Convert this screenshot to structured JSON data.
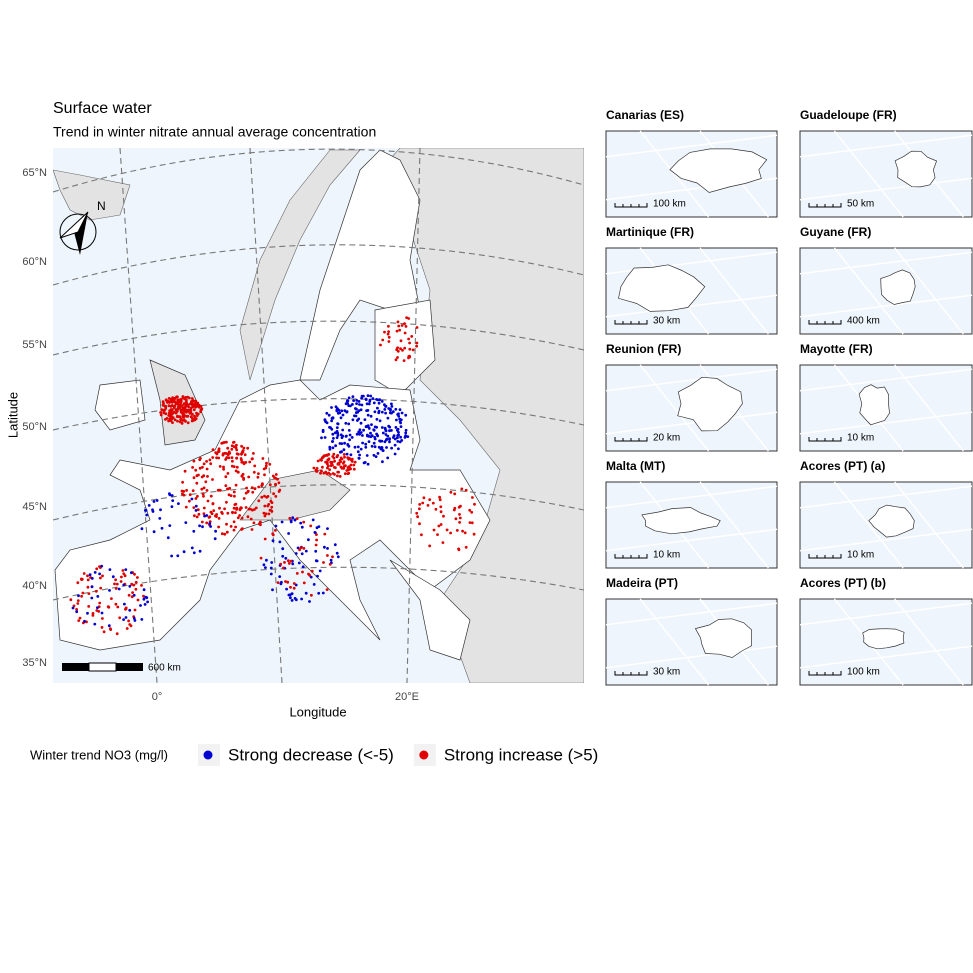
{
  "map": {
    "title": "Surface water",
    "subtitle": "Trend in winter nitrate annual average concentration",
    "y_axis_label": "Latitude",
    "x_axis_label": "Longitude",
    "y_ticks": [
      "65°N",
      "60°N",
      "55°N",
      "50°N",
      "45°N",
      "40°N",
      "35°N"
    ],
    "x_ticks": [
      "0°",
      "20°E"
    ],
    "scale_bar": "600 km",
    "north": "N"
  },
  "legend": {
    "title": "Winter trend NO3 (mg/l)",
    "items": [
      {
        "label": "Strong decrease (<-5)",
        "color": "#0000d0"
      },
      {
        "label": "Strong increase (>5)",
        "color": "#e00000"
      }
    ]
  },
  "insets": [
    {
      "title": "Canarias (ES)",
      "scale": "100 km"
    },
    {
      "title": "Guadeloupe (FR)",
      "scale": "50 km"
    },
    {
      "title": "Martinique (FR)",
      "scale": "30 km"
    },
    {
      "title": "Guyane (FR)",
      "scale": "400 km"
    },
    {
      "title": "Reunion (FR)",
      "scale": "20 km"
    },
    {
      "title": "Mayotte (FR)",
      "scale": "10 km"
    },
    {
      "title": "Malta (MT)",
      "scale": "10 km"
    },
    {
      "title": "Acores (PT) (a)",
      "scale": "10 km"
    },
    {
      "title": "Madeira (PT)",
      "scale": "30 km"
    },
    {
      "title": "Acores (PT) (b)",
      "scale": "100 km"
    }
  ]
}
